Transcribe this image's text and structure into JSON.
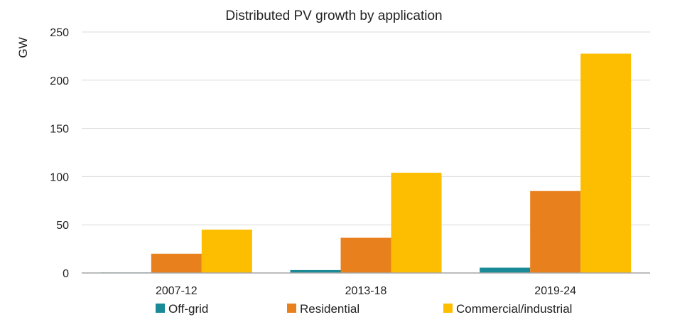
{
  "chart_data": {
    "type": "bar",
    "title": "Distributed PV growth by application",
    "ylabel": "GW",
    "xlabel": "",
    "categories": [
      "2007-12",
      "2013-18",
      "2019-24"
    ],
    "ylim": [
      0,
      250
    ],
    "yticks": [
      0,
      50,
      100,
      150,
      200,
      250
    ],
    "grid": true,
    "legend": "bottom",
    "series": [
      {
        "name": "Off-grid",
        "color": "#1a8a96",
        "values": [
          0.5,
          3,
          5.5
        ]
      },
      {
        "name": "Residential",
        "color": "#e8801d",
        "values": [
          20,
          36.5,
          85
        ]
      },
      {
        "name": "Commercial/industrial",
        "color": "#fdbd00",
        "values": [
          45,
          104,
          227.5
        ]
      }
    ]
  }
}
